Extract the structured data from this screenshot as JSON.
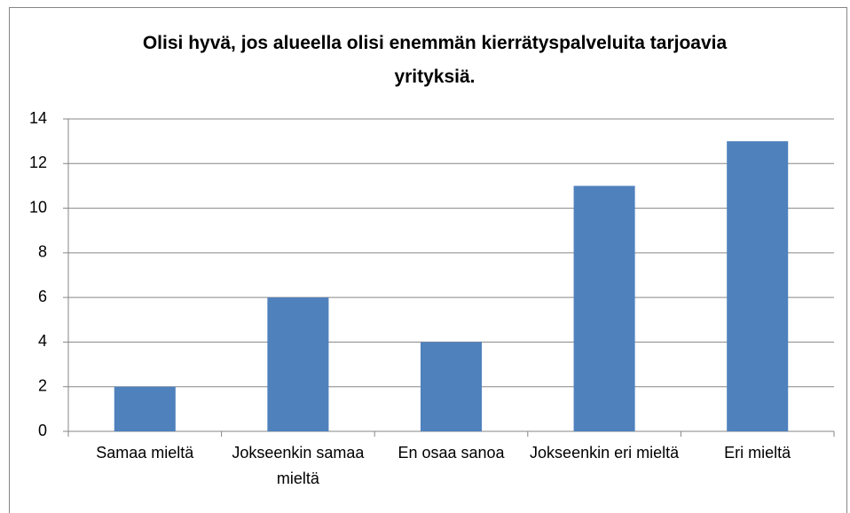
{
  "chart_data": {
    "type": "bar",
    "title": "Olisi hyvä, jos alueella olisi enemmän kierrätyspalveluita tarjoavia yrityksiä.",
    "categories": [
      "Samaa mieltä",
      "Jokseenkin samaa mieltä",
      "En osaa sanoa",
      "Jokseenkin eri mieltä",
      "Eri mieltä"
    ],
    "values": [
      2,
      6,
      4,
      11,
      13
    ],
    "color": "#4f81bd",
    "ylim": [
      0,
      14
    ],
    "yticks": [
      0,
      2,
      4,
      6,
      8,
      10,
      12,
      14
    ],
    "grid": true
  }
}
